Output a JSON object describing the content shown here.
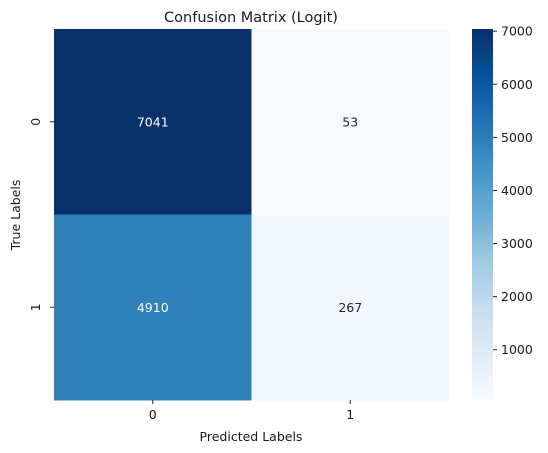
{
  "chart_data": {
    "type": "heatmap",
    "title": "Confusion Matrix (Logit)",
    "xlabel": "Predicted Labels",
    "ylabel": "True Labels",
    "x_categories": [
      "0",
      "1"
    ],
    "y_categories": [
      "0",
      "1"
    ],
    "values": [
      [
        7041,
        53
      ],
      [
        4910,
        267
      ]
    ],
    "colormap": "Blues",
    "colormap_stops": [
      "#f7fbff",
      "#deebf7",
      "#c6dbef",
      "#9ecae1",
      "#6baed6",
      "#4292c6",
      "#2171b5",
      "#08519c",
      "#08306b"
    ],
    "color_range": [
      53,
      7041
    ],
    "colorbar_ticks": [
      "1000",
      "2000",
      "3000",
      "4000",
      "5000",
      "6000",
      "7000"
    ],
    "colorbar_tick_values": [
      1000,
      2000,
      3000,
      4000,
      5000,
      6000,
      7000
    ],
    "grid": false
  }
}
